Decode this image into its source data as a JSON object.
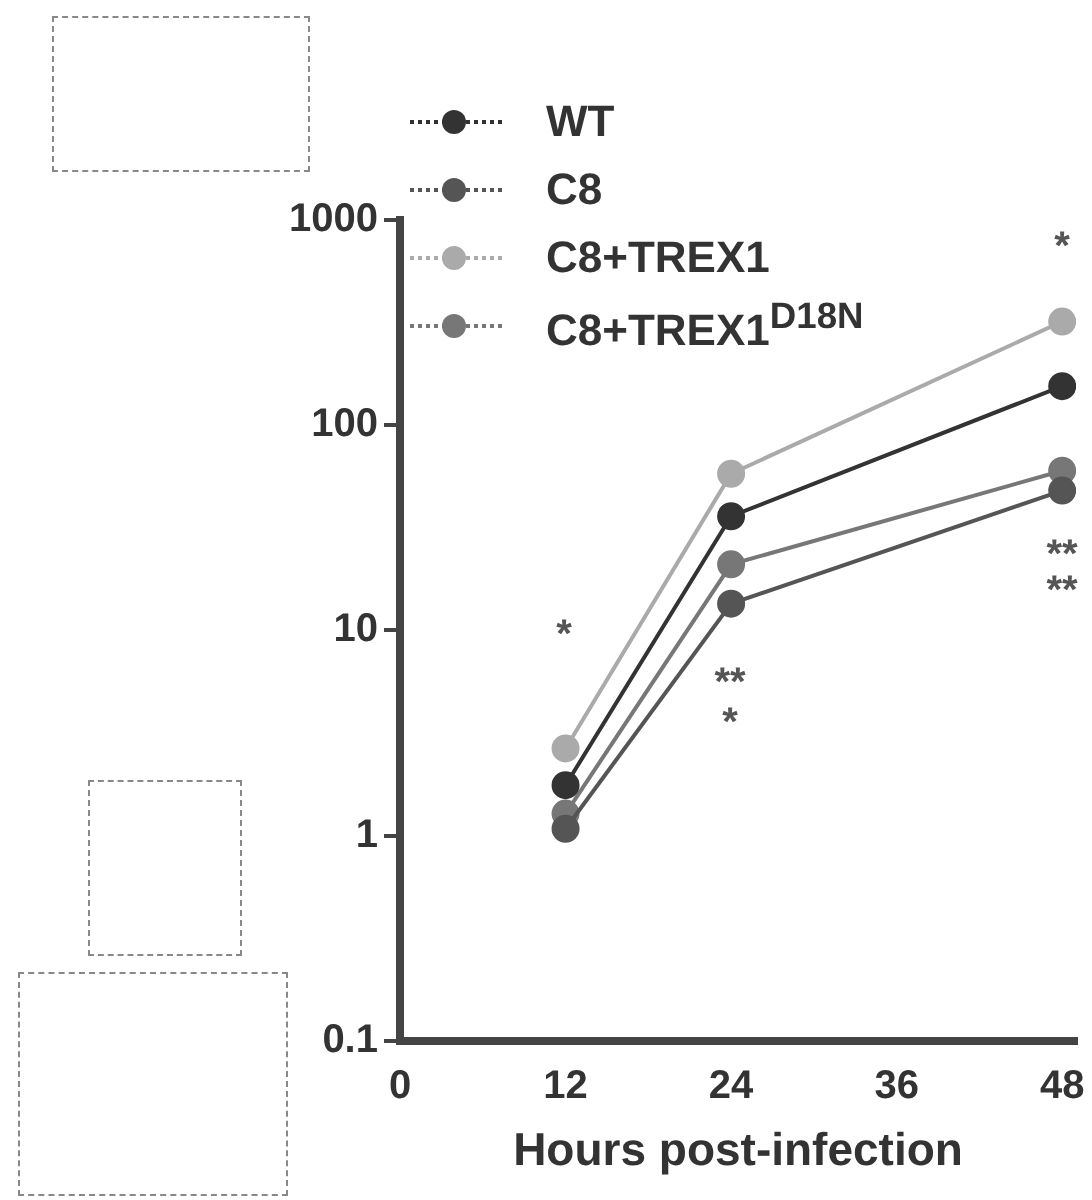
{
  "chart_data": {
    "type": "line",
    "xlabel": "Hours post-infection",
    "x": [
      12,
      24,
      48
    ],
    "series": [
      {
        "name": "WT",
        "color": "#333333",
        "values": [
          1.76,
          36,
          155
        ]
      },
      {
        "name": "C8",
        "color": "#555555",
        "values": [
          1.08,
          13.5,
          48
        ]
      },
      {
        "name": "C8+TREX1",
        "color": "#aaaaaa",
        "values": [
          2.66,
          58,
          320
        ]
      },
      {
        "name": "C8+TREX1$^{D18N}$",
        "color": "#777777",
        "values": [
          1.28,
          21,
          60
        ]
      }
    ],
    "xlim": [
      0,
      49
    ],
    "xticks": [
      0,
      12,
      24,
      36,
      48
    ],
    "ylim": [
      0.1,
      1000
    ],
    "yticks": [
      0.1,
      1,
      10,
      100,
      1000
    ],
    "log": "y",
    "grid": false,
    "legend": "top",
    "marker": "circle",
    "line_style": "solid",
    "annotations": [
      "*",
      "**",
      "*",
      "*",
      "**",
      "**"
    ]
  }
}
